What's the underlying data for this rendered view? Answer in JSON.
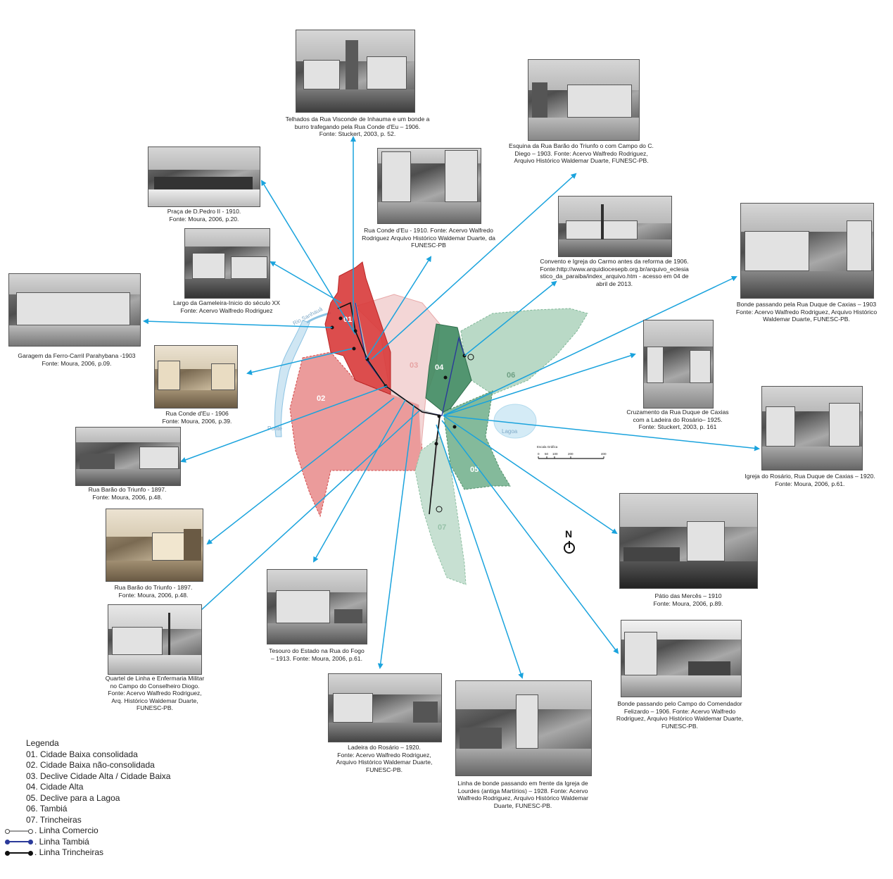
{
  "map": {
    "zones": [
      {
        "id": "01",
        "color": "#d83a3a"
      },
      {
        "id": "02",
        "color": "#e88a8a"
      },
      {
        "id": "03",
        "color": "#f3d6d6"
      },
      {
        "id": "04",
        "color": "#3f8a61"
      },
      {
        "id": "05",
        "color": "#6fae8a"
      },
      {
        "id": "06",
        "color": "#b9d9c6"
      },
      {
        "id": "07",
        "color": "#c7e0d2"
      }
    ],
    "labels": {
      "river": "Rio Sanhauá",
      "ponte": "Ponte",
      "lagoa": "Lagoa",
      "scale_title": "Escala Gráfica",
      "scale_ticks": [
        "0",
        "50",
        "100",
        "200",
        "400"
      ],
      "north": "N"
    },
    "arrow_color": "#1aa3dd"
  },
  "photos": [
    {
      "id": "telhados",
      "caption": [
        "Telhados da Rua Visconde de Inhauma e um bonde a",
        "burro trafegando pela Rua Conde d'Eu – 1906.",
        "Fonte: Stuckert, 2003, p. 52."
      ]
    },
    {
      "id": "esquina",
      "caption": [
        "Esquina da Rua Barão do Triunfo o com Campo do C.",
        "Diego – 1903.  Fonte: Acervo Walfredo Rodriguez,",
        "Arquivo Histórico Waldemar Duarte, FUNESC-PB."
      ]
    },
    {
      "id": "praca",
      "caption": [
        "Praça de D.Pedro II - 1910.",
        "Fonte: Moura, 2006, p.20."
      ]
    },
    {
      "id": "conde-1910",
      "caption": [
        "Rua Conde d'Eu - 1910. Fonte: Acervo Walfredo",
        "Rodriguez Arquivo Histórico Waldemar Duarte, da",
        "FUNESC-PB"
      ]
    },
    {
      "id": "convento",
      "caption": [
        "Convento e Igreja do Carmo antes da reforma de 1906.",
        "Fonte:http://www.arquidiocesepb.org.br/arquivo_eclesia",
        "stico_da_paraiba/index_arquivo.htm - acesso em 04 de",
        "abril de 2013."
      ]
    },
    {
      "id": "bonde-duque",
      "caption": [
        "Bonde passando pela Rua Duque de Caxias  – 1903",
        "Fonte: Acervo Walfredo Rodriguez, Arquivo Histórico",
        "Waldemar Duarte, FUNESC-PB."
      ]
    },
    {
      "id": "gameleira",
      "caption": [
        "Largo da Gameleira-Inicio do século XX",
        "Fonte: Acervo Walfredo Rodriguez"
      ]
    },
    {
      "id": "garagem",
      "caption": [
        "Garagem da Ferro-Carril Parahybana -1903",
        "Fonte: Moura, 2006, p.09."
      ]
    },
    {
      "id": "conde-1906",
      "caption": [
        "Rua Conde d'Eu - 1906",
        "Fonte: Moura, 2006, p.39."
      ]
    },
    {
      "id": "cruzamento",
      "caption": [
        "Cruzamento da Rua Duque de Caxias",
        "com a Ladeira do Rosário– 1925.",
        "Fonte: Stuckert, 2003, p. 161"
      ]
    },
    {
      "id": "igreja-rosario",
      "caption": [
        "Igreja do Rosário, Rua Duque de Caxias – 1920.",
        "Fonte: Moura, 2006, p.61."
      ]
    },
    {
      "id": "barao-1",
      "caption": [
        "Rua Barão do Triunfo - 1897.",
        "Fonte: Moura, 2006, p.48."
      ]
    },
    {
      "id": "barao-2",
      "caption": [
        "Rua Barão do Triunfo - 1897.",
        "Fonte: Moura, 2006, p.48."
      ]
    },
    {
      "id": "patio",
      "caption": [
        "Pátio das Mercês – 1910",
        "Fonte: Moura, 2006, p.89."
      ]
    },
    {
      "id": "tesouro",
      "caption": [
        "Tesouro do Estado na Rua do Fogo",
        "– 1913. Fonte: Moura, 2006, p.61."
      ]
    },
    {
      "id": "quartel",
      "caption": [
        "Quartel de Linha  e Enfermaria Militar",
        "no Campo do Conselheiro Diogo.",
        "Fonte: Acervo Walfredo Rodriguez,",
        "Arq. Histórico Waldemar Duarte,",
        "FUNESC-PB."
      ]
    },
    {
      "id": "bonde-campo",
      "caption": [
        "Bonde passando pelo Campo do Comendador",
        "Felizardo – 1906. Fonte: Acervo Walfredo",
        "Rodriguez, Arquivo Histórico Waldemar Duarte,",
        "FUNESC-PB."
      ]
    },
    {
      "id": "ladeira",
      "caption": [
        "Ladeira do Rosário – 1920.",
        "Fonte: Acervo Walfredo Rodriguez,",
        "Arquivo Histórico Waldemar Duarte,",
        "FUNESC-PB."
      ]
    },
    {
      "id": "linha-lourdes",
      "caption": [
        "Linha de bonde passando em frente da Igreja de",
        "Lourdes (antiga Martírios) – 1928. Fonte: Acervo",
        "Walfredo Rodriguez, Arquivo Histórico Waldemar",
        "Duarte, FUNESC-PB."
      ]
    }
  ],
  "legend": {
    "title": "Legenda",
    "items": [
      "01. Cidade Baixa consolidada",
      "02. Cidade Baixa não-consolidada",
      "03. Declive Cidade Alta / Cidade Baixa",
      "04. Cidade Alta",
      "05. Declive para a Lagoa",
      "06. Tambiá",
      "07. Trincheiras"
    ],
    "lines": [
      {
        "label": ". Linha Comercio",
        "color": "#9a9a9a"
      },
      {
        "label": ". Linha Tambiá",
        "color": "#2b3a9a"
      },
      {
        "label": ". Linha Trincheiras",
        "color": "#111111"
      }
    ]
  }
}
